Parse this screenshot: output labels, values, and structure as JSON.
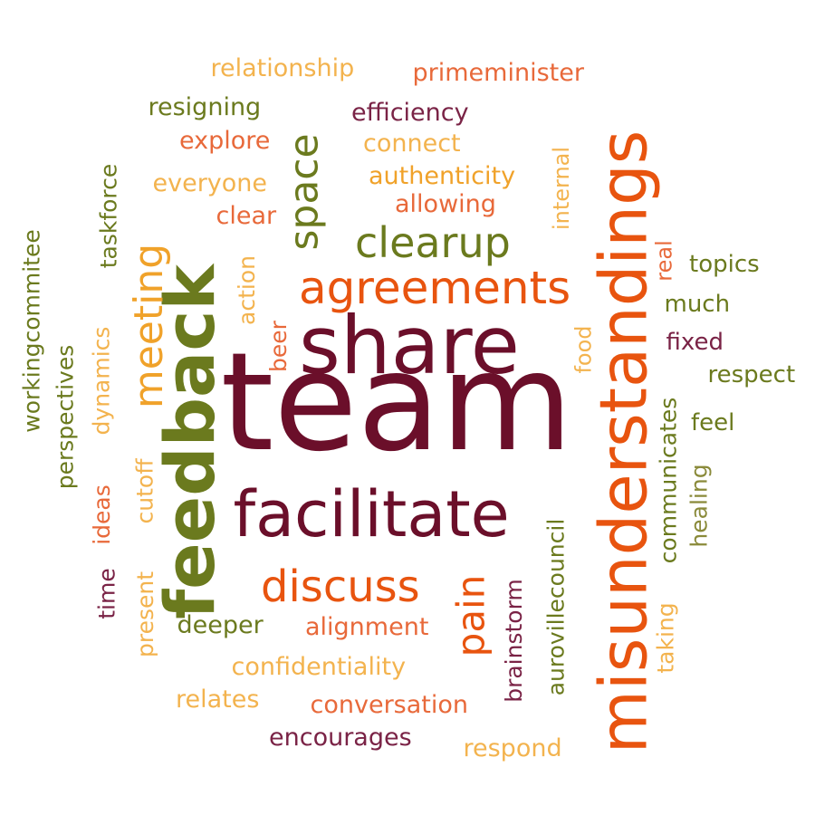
{
  "palette": {
    "maroon": "#6b0f2a",
    "plum": "#7a2346",
    "orange": "#e8540f",
    "coral": "#e8693a",
    "gold": "#f0a22a",
    "peach": "#f3b34e",
    "olive": "#6b7a1e",
    "khaki": "#8a8a3a"
  },
  "words": [
    {
      "id": "team",
      "text": "team",
      "color": "#6b0f2a"
    },
    {
      "id": "share",
      "text": "share",
      "color": "#6b0f2a"
    },
    {
      "id": "facilitate",
      "text": "facilitate",
      "color": "#6b0f2a"
    },
    {
      "id": "feedback",
      "text": "feedback",
      "color": "#6b7a1e"
    },
    {
      "id": "misunderstandings",
      "text": "misunderstandings",
      "color": "#e8540f"
    },
    {
      "id": "agreements",
      "text": "agreements",
      "color": "#e8540f"
    },
    {
      "id": "clearup",
      "text": "clearup",
      "color": "#6b7a1e"
    },
    {
      "id": "space",
      "text": "space",
      "color": "#6b7a1e"
    },
    {
      "id": "meeting",
      "text": "meeting",
      "color": "#f0a22a"
    },
    {
      "id": "discuss",
      "text": "discuss",
      "color": "#e8540f"
    },
    {
      "id": "pain",
      "text": "pain",
      "color": "#e8540f"
    },
    {
      "id": "relationship",
      "text": "relationship",
      "color": "#f3b34e"
    },
    {
      "id": "primeminister",
      "text": "primeminister",
      "color": "#e8693a"
    },
    {
      "id": "resigning",
      "text": "resigning",
      "color": "#6b7a1e"
    },
    {
      "id": "efficiency",
      "text": "efficiency",
      "color": "#7a2346"
    },
    {
      "id": "explore",
      "text": "explore",
      "color": "#e8693a"
    },
    {
      "id": "connect",
      "text": "connect",
      "color": "#f3b34e"
    },
    {
      "id": "everyone",
      "text": "everyone",
      "color": "#f3b34e"
    },
    {
      "id": "authenticity",
      "text": "authenticity",
      "color": "#f0a22a"
    },
    {
      "id": "allowing",
      "text": "allowing",
      "color": "#e8693a"
    },
    {
      "id": "clear",
      "text": "clear",
      "color": "#e8693a"
    },
    {
      "id": "internal",
      "text": "internal",
      "color": "#f3b34e"
    },
    {
      "id": "taskforce",
      "text": "taskforce",
      "color": "#6b7a1e"
    },
    {
      "id": "workingcommitee",
      "text": "workingcommitee",
      "color": "#6b7a1e"
    },
    {
      "id": "perspectives",
      "text": "perspectives",
      "color": "#6b7a1e"
    },
    {
      "id": "dynamics",
      "text": "dynamics",
      "color": "#f3b34e"
    },
    {
      "id": "action",
      "text": "action",
      "color": "#f3b34e"
    },
    {
      "id": "beer",
      "text": "beer",
      "color": "#e8693a"
    },
    {
      "id": "ideas",
      "text": "ideas",
      "color": "#e8693a"
    },
    {
      "id": "cutoff",
      "text": "cutoff",
      "color": "#f3b34e"
    },
    {
      "id": "time",
      "text": "time",
      "color": "#7a2346"
    },
    {
      "id": "present",
      "text": "present",
      "color": "#f3b34e"
    },
    {
      "id": "real",
      "text": "real",
      "color": "#e8693a"
    },
    {
      "id": "food",
      "text": "food",
      "color": "#f3b34e"
    },
    {
      "id": "topics",
      "text": "topics",
      "color": "#6b7a1e"
    },
    {
      "id": "much",
      "text": "much",
      "color": "#6b7a1e"
    },
    {
      "id": "fixed",
      "text": "fixed",
      "color": "#7a2346"
    },
    {
      "id": "respect",
      "text": "respect",
      "color": "#6b7a1e"
    },
    {
      "id": "feel",
      "text": "feel",
      "color": "#6b7a1e"
    },
    {
      "id": "communicates",
      "text": "communicates",
      "color": "#6b7a1e"
    },
    {
      "id": "healing",
      "text": "healing",
      "color": "#8a8a3a"
    },
    {
      "id": "aurovillecouncil",
      "text": "aurovillecouncil",
      "color": "#6b7a1e"
    },
    {
      "id": "brainstorm",
      "text": "brainstorm",
      "color": "#7a2346"
    },
    {
      "id": "taking",
      "text": "taking",
      "color": "#f3b34e"
    },
    {
      "id": "deeper",
      "text": "deeper",
      "color": "#6b7a1e"
    },
    {
      "id": "alignment",
      "text": "alignment",
      "color": "#e8693a"
    },
    {
      "id": "confidentiality",
      "text": "confidentiality",
      "color": "#f3b34e"
    },
    {
      "id": "relates",
      "text": "relates",
      "color": "#f3b34e"
    },
    {
      "id": "conversation",
      "text": "conversation",
      "color": "#e8693a"
    },
    {
      "id": "encourages",
      "text": "encourages",
      "color": "#7a2346"
    },
    {
      "id": "respond",
      "text": "respond",
      "color": "#f3b34e"
    }
  ]
}
